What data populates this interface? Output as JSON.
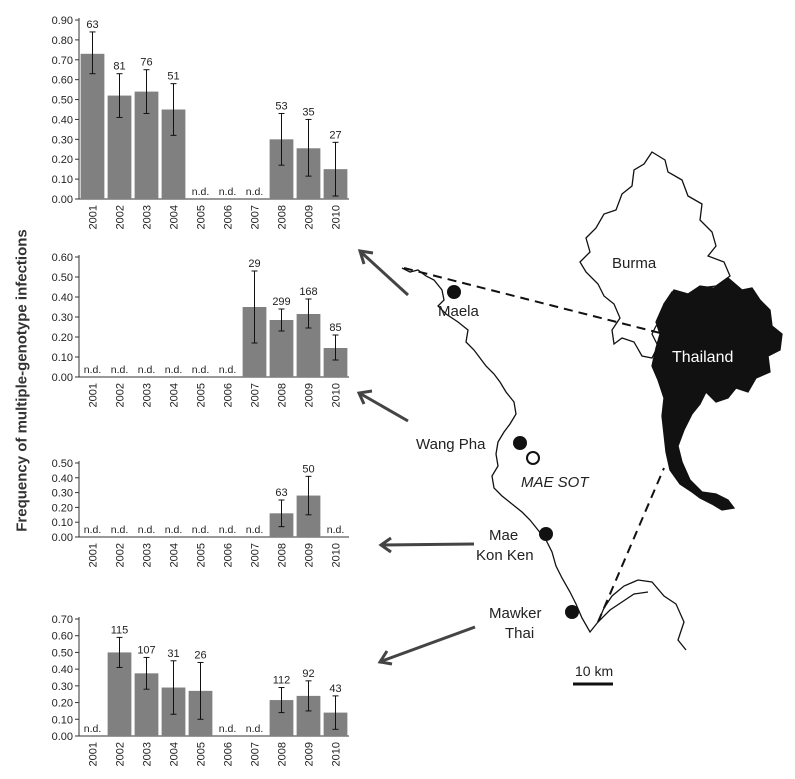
{
  "figure": {
    "ylabel": "Frequency of multiple-genotype infections",
    "map": {
      "labels": {
        "burma": "Burma",
        "thailand": "Thailand",
        "maela": "Maela",
        "wang_pha": "Wang Pha",
        "mae_sot": "MAE SOT",
        "mae_kon_ken_1": "Mae",
        "mae_kon_ken_2": "Kon Ken",
        "mawker_thai_1": "Mawker",
        "mawker_thai_2": "Thai",
        "scale": "10 km"
      },
      "colors": {
        "thailand_fill": "#111111",
        "line": "#111111"
      }
    }
  },
  "chart_data": [
    {
      "type": "bar",
      "site": "Maela",
      "categories": [
        "2001",
        "2002",
        "2003",
        "2004",
        "2005",
        "2006",
        "2007",
        "2008",
        "2009",
        "2010"
      ],
      "values": [
        0.73,
        0.52,
        0.54,
        0.45,
        null,
        null,
        null,
        0.3,
        0.255,
        0.15
      ],
      "error_low": [
        0.63,
        0.41,
        0.43,
        0.32,
        null,
        null,
        null,
        0.17,
        0.115,
        0.015
      ],
      "error_high": [
        0.84,
        0.63,
        0.65,
        0.58,
        null,
        null,
        null,
        0.43,
        0.4,
        0.285
      ],
      "labels": [
        "63",
        "81",
        "76",
        "51",
        "n.d.",
        "n.d.",
        "n.d.",
        "53",
        "35",
        "27"
      ],
      "ylim": [
        0,
        0.9
      ],
      "yticks": [
        "0.00",
        "0.10",
        "0.20",
        "0.30",
        "0.40",
        "0.50",
        "0.60",
        "0.70",
        "0.80",
        "0.90"
      ],
      "bar_color": "#808080"
    },
    {
      "type": "bar",
      "site": "Wang Pha",
      "categories": [
        "2001",
        "2002",
        "2003",
        "2004",
        "2005",
        "2006",
        "2007",
        "2008",
        "2009",
        "2010"
      ],
      "values": [
        null,
        null,
        null,
        null,
        null,
        null,
        0.35,
        0.285,
        0.315,
        0.145
      ],
      "error_low": [
        null,
        null,
        null,
        null,
        null,
        null,
        0.17,
        0.23,
        0.245,
        0.085
      ],
      "error_high": [
        null,
        null,
        null,
        null,
        null,
        null,
        0.53,
        0.34,
        0.39,
        0.21
      ],
      "labels": [
        "n.d.",
        "n.d.",
        "n.d.",
        "n.d.",
        "n.d.",
        "n.d.",
        "29",
        "299",
        "168",
        "85"
      ],
      "ylim": [
        0,
        0.6
      ],
      "yticks": [
        "0.00",
        "0.10",
        "0.20",
        "0.30",
        "0.40",
        "0.50",
        "0.60"
      ],
      "bar_color": "#808080"
    },
    {
      "type": "bar",
      "site": "Mae Kon Ken",
      "categories": [
        "2001",
        "2002",
        "2003",
        "2004",
        "2005",
        "2006",
        "2007",
        "2008",
        "2009",
        "2010"
      ],
      "values": [
        null,
        null,
        null,
        null,
        null,
        null,
        null,
        0.16,
        0.28,
        null
      ],
      "error_low": [
        null,
        null,
        null,
        null,
        null,
        null,
        null,
        0.07,
        0.15,
        null
      ],
      "error_high": [
        null,
        null,
        null,
        null,
        null,
        null,
        null,
        0.25,
        0.41,
        null
      ],
      "labels": [
        "n.d.",
        "n.d.",
        "n.d.",
        "n.d.",
        "n.d.",
        "n.d.",
        "n.d.",
        "63",
        "50",
        "n.d."
      ],
      "ylim": [
        0,
        0.5
      ],
      "yticks": [
        "0.00",
        "0.10",
        "0.20",
        "0.30",
        "0.40",
        "0.50"
      ],
      "bar_color": "#808080"
    },
    {
      "type": "bar",
      "site": "Mawker Thai",
      "categories": [
        "2001",
        "2002",
        "2003",
        "2004",
        "2005",
        "2006",
        "2007",
        "2008",
        "2009",
        "2010"
      ],
      "values": [
        null,
        0.5,
        0.375,
        0.29,
        0.27,
        null,
        null,
        0.215,
        0.24,
        0.14
      ],
      "error_low": [
        null,
        0.41,
        0.28,
        0.13,
        0.1,
        null,
        null,
        0.14,
        0.15,
        0.04
      ],
      "error_high": [
        null,
        0.59,
        0.47,
        0.45,
        0.44,
        null,
        null,
        0.29,
        0.33,
        0.24
      ],
      "labels": [
        "n.d.",
        "115",
        "107",
        "31",
        "26",
        "n.d.",
        "n.d.",
        "112",
        "92",
        "43"
      ],
      "ylim": [
        0,
        0.7
      ],
      "yticks": [
        "0.00",
        "0.10",
        "0.20",
        "0.30",
        "0.40",
        "0.50",
        "0.60",
        "0.70"
      ],
      "bar_color": "#808080"
    }
  ]
}
